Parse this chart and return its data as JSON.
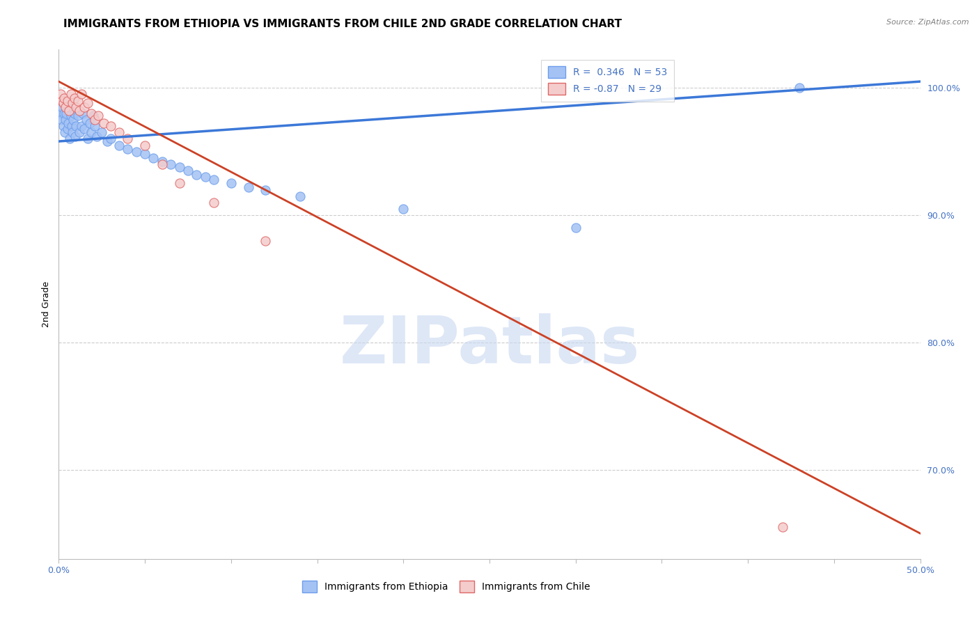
{
  "title": "IMMIGRANTS FROM ETHIOPIA VS IMMIGRANTS FROM CHILE 2ND GRADE CORRELATION CHART",
  "source": "Source: ZipAtlas.com",
  "ylabel": "2nd Grade",
  "xlim": [
    0.0,
    50.0
  ],
  "ylim": [
    63.0,
    103.0
  ],
  "xticks": [
    0.0,
    5.0,
    10.0,
    15.0,
    20.0,
    25.0,
    30.0,
    35.0,
    40.0,
    45.0,
    50.0
  ],
  "yticks_right": [
    70.0,
    80.0,
    90.0,
    100.0
  ],
  "yticklabels_right": [
    "70.0%",
    "80.0%",
    "90.0%",
    "100.0%"
  ],
  "ethiopia_color": "#a4c2f4",
  "chile_color": "#f4cccc",
  "ethiopia_edge_color": "#6d9eeb",
  "chile_edge_color": "#e06666",
  "ethiopia_line_color": "#3c78d8",
  "chile_line_color": "#cc4125",
  "R_ethiopia": 0.346,
  "N_ethiopia": 53,
  "R_chile": -0.87,
  "N_chile": 29,
  "legend_label_ethiopia": "Immigrants from Ethiopia",
  "legend_label_chile": "Immigrants from Chile",
  "ethiopia_x": [
    0.1,
    0.15,
    0.2,
    0.25,
    0.3,
    0.35,
    0.4,
    0.45,
    0.5,
    0.55,
    0.6,
    0.65,
    0.7,
    0.75,
    0.8,
    0.85,
    0.9,
    0.95,
    1.0,
    1.1,
    1.2,
    1.3,
    1.4,
    1.5,
    1.6,
    1.7,
    1.8,
    1.9,
    2.0,
    2.1,
    2.2,
    2.5,
    2.8,
    3.0,
    3.5,
    4.0,
    4.5,
    5.0,
    5.5,
    6.0,
    6.5,
    7.0,
    7.5,
    8.0,
    8.5,
    9.0,
    10.0,
    11.0,
    12.0,
    14.0,
    20.0,
    30.0,
    43.0
  ],
  "ethiopia_y": [
    98.0,
    97.5,
    98.5,
    97.0,
    98.0,
    96.5,
    97.5,
    98.0,
    96.8,
    97.2,
    98.5,
    96.0,
    97.8,
    97.0,
    96.5,
    97.5,
    98.0,
    96.2,
    97.0,
    97.8,
    96.5,
    97.0,
    98.0,
    96.8,
    97.5,
    96.0,
    97.2,
    96.5,
    97.8,
    97.0,
    96.2,
    96.5,
    95.8,
    96.0,
    95.5,
    95.2,
    95.0,
    94.8,
    94.5,
    94.2,
    94.0,
    93.8,
    93.5,
    93.2,
    93.0,
    92.8,
    92.5,
    92.2,
    92.0,
    91.5,
    90.5,
    89.0,
    100.0
  ],
  "chile_x": [
    0.1,
    0.2,
    0.25,
    0.3,
    0.4,
    0.5,
    0.6,
    0.7,
    0.8,
    0.9,
    1.0,
    1.1,
    1.2,
    1.3,
    1.5,
    1.7,
    1.9,
    2.1,
    2.3,
    2.6,
    3.0,
    3.5,
    4.0,
    5.0,
    6.0,
    7.0,
    9.0,
    12.0,
    42.0
  ],
  "chile_y": [
    99.5,
    99.0,
    98.8,
    99.2,
    98.5,
    99.0,
    98.2,
    99.5,
    98.8,
    99.2,
    98.5,
    99.0,
    98.2,
    99.5,
    98.5,
    98.8,
    98.0,
    97.5,
    97.8,
    97.2,
    97.0,
    96.5,
    96.0,
    95.5,
    94.0,
    92.5,
    91.0,
    88.0,
    65.5
  ],
  "eth_line_x0": 0.0,
  "eth_line_y0": 95.8,
  "eth_line_x1": 50.0,
  "eth_line_y1": 100.5,
  "chile_line_x0": 0.0,
  "chile_line_y0": 100.5,
  "chile_line_x1": 50.0,
  "chile_line_y1": 65.0,
  "watermark_text": "ZIPatlas",
  "watermark_color": "#c8d8f0",
  "background_color": "#ffffff",
  "grid_color": "#cccccc",
  "title_fontsize": 11,
  "axis_label_fontsize": 9,
  "tick_fontsize": 9,
  "legend_fontsize": 10,
  "tick_color": "#4472c4"
}
